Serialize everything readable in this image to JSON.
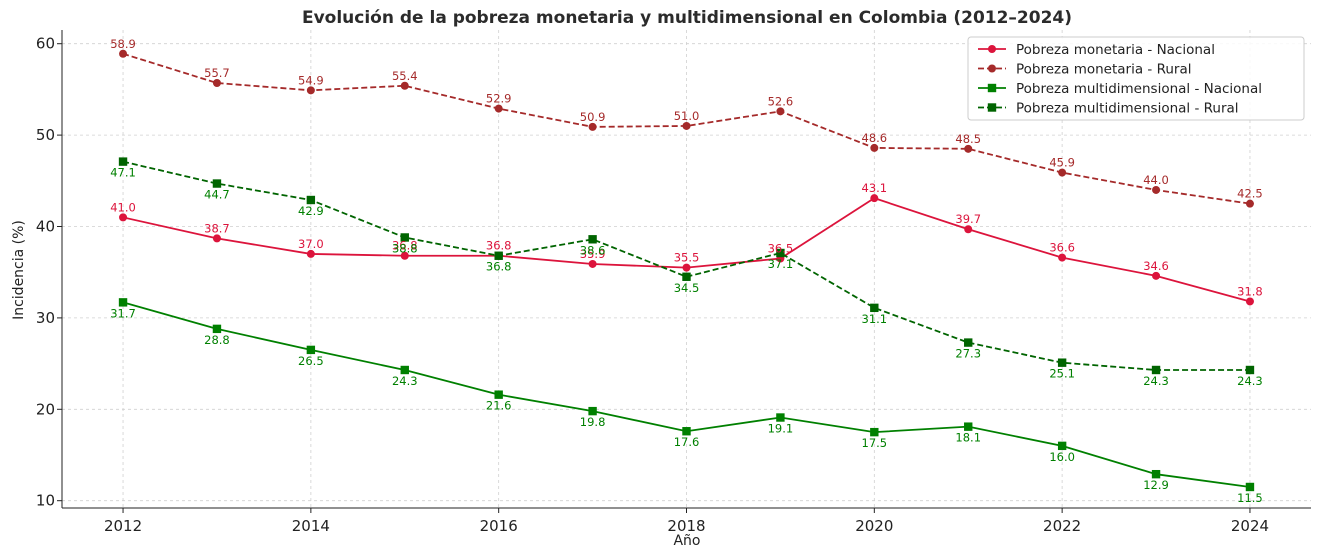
{
  "chart_data": {
    "type": "line",
    "title": "Evolución de la pobreza monetaria y multidimensional en Colombia (2012–2024)",
    "xlabel": "Año",
    "ylabel": "Incidencia (%)",
    "x": [
      2012,
      2013,
      2014,
      2015,
      2016,
      2017,
      2018,
      2019,
      2020,
      2021,
      2022,
      2023,
      2024
    ],
    "xticks": [
      "2012",
      "2014",
      "2016",
      "2018",
      "2020",
      "2022",
      "2024"
    ],
    "yticks": [
      "10",
      "20",
      "30",
      "40",
      "50",
      "60"
    ],
    "xlim": [
      2011.35,
      2024.65
    ],
    "ylim": [
      9.2,
      61.5
    ],
    "grid": true,
    "legend_position": "top-right",
    "series": [
      {
        "name": "Pobreza monetaria - Nacional",
        "color": "#dc143c",
        "label_color": "#dc143c",
        "marker": "circle",
        "dashed": false,
        "label_position": "above",
        "values": [
          41.0,
          38.7,
          37.0,
          36.8,
          36.8,
          35.9,
          35.5,
          36.5,
          43.1,
          39.7,
          36.6,
          34.6,
          31.8
        ],
        "labels": [
          "41.0",
          "38.7",
          "37.0",
          "36.8",
          "36.8",
          "35.9",
          "35.5",
          "36.5",
          "43.1",
          "39.7",
          "36.6",
          "34.6",
          "31.8"
        ]
      },
      {
        "name": "Pobreza monetaria - Rural",
        "color": "#a52a2a",
        "label_color": "#a52a2a",
        "marker": "circle",
        "dashed": true,
        "label_position": "above",
        "values": [
          58.9,
          55.7,
          54.9,
          55.4,
          52.9,
          50.9,
          51.0,
          52.6,
          48.6,
          48.5,
          45.9,
          44.0,
          42.5
        ],
        "labels": [
          "58.9",
          "55.7",
          "54.9",
          "55.4",
          "52.9",
          "50.9",
          "51.0",
          "52.6",
          "48.6",
          "48.5",
          "45.9",
          "44.0",
          "42.5"
        ]
      },
      {
        "name": "Pobreza multidimensional - Nacional",
        "color": "#008000",
        "label_color": "#008000",
        "marker": "square",
        "dashed": false,
        "label_position": "below",
        "values": [
          31.7,
          28.8,
          26.5,
          24.3,
          21.6,
          19.8,
          17.6,
          19.1,
          17.5,
          18.1,
          16.0,
          12.9,
          11.5
        ],
        "labels": [
          "31.7",
          "28.8",
          "26.5",
          "24.3",
          "21.6",
          "19.8",
          "17.6",
          "19.1",
          "17.5",
          "18.1",
          "16.0",
          "12.9",
          "11.5"
        ]
      },
      {
        "name": "Pobreza multidimensional - Rural",
        "color": "#006400",
        "label_color": "#008000",
        "marker": "square",
        "dashed": true,
        "label_position": "below",
        "values": [
          47.1,
          44.7,
          42.9,
          38.8,
          36.8,
          38.6,
          34.5,
          37.1,
          31.1,
          27.3,
          25.1,
          24.3,
          24.3
        ],
        "labels": [
          "47.1",
          "44.7",
          "42.9",
          "38.8",
          "36.8",
          "38.6",
          "34.5",
          "37.1",
          "31.1",
          "27.3",
          "25.1",
          "24.3",
          "24.3"
        ]
      }
    ]
  }
}
